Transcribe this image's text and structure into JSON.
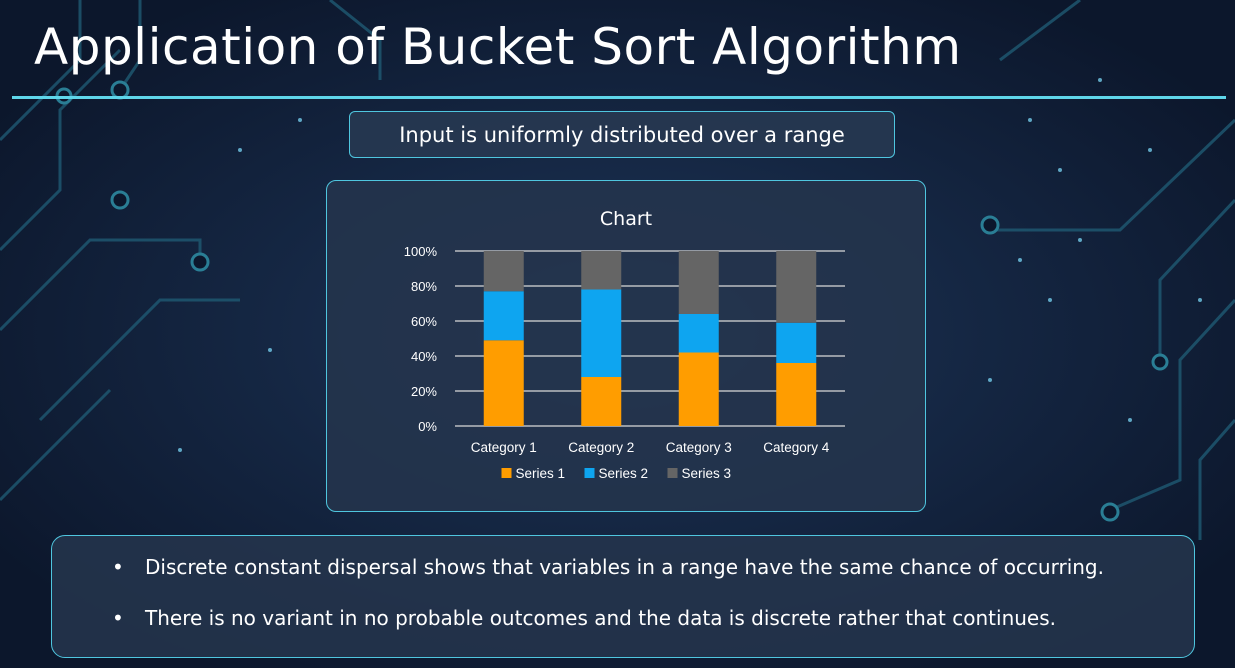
{
  "slide": {
    "title": "Application of Bucket Sort Algorithm",
    "subtitle": "Input is uniformly distributed over a range",
    "bullets": [
      "Discrete constant dispersal shows that variables in a range have the same chance of occurring.",
      "There is no variant in no probable outcomes and the data is discrete rather that continues."
    ],
    "bullet_symbol": "•"
  },
  "chart_data": {
    "type": "bar",
    "stacking": "percent",
    "title": "Chart",
    "categories": [
      "Category 1",
      "Category 2",
      "Category 3",
      "Category 4"
    ],
    "series": [
      {
        "name": "Series 1",
        "values": [
          49,
          28,
          42,
          36
        ]
      },
      {
        "name": "Series 2",
        "values": [
          28,
          50,
          22,
          23
        ]
      },
      {
        "name": "Series 3",
        "values": [
          23,
          22,
          36,
          41
        ]
      }
    ],
    "ylim": [
      0,
      100
    ],
    "yticks": [
      "0%",
      "20%",
      "40%",
      "60%",
      "80%",
      "100%"
    ],
    "grid": true,
    "legend": "bottom",
    "colors": [
      "#ff9d00",
      "#0ea5f0",
      "#656565"
    ]
  },
  "colors": {
    "background": "#0f1c33",
    "accent": "#4fc6df",
    "text": "#ffffff"
  }
}
